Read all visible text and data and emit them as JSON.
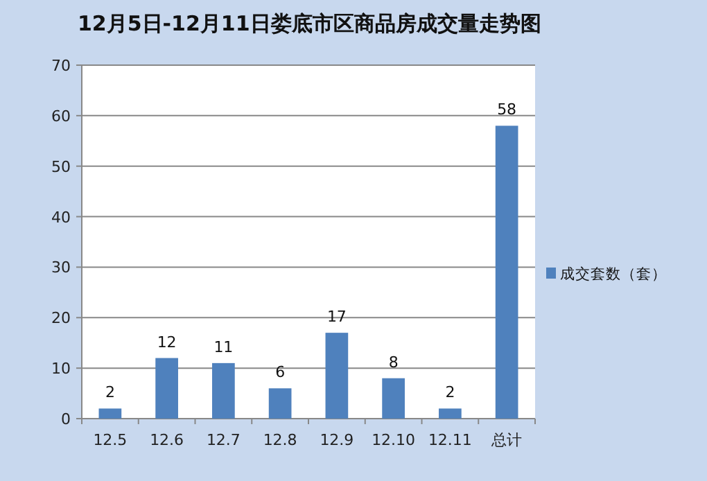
{
  "chart_data": {
    "type": "bar",
    "title": "12月5日-12月11日娄底市区商品房成交量走势图",
    "categories": [
      "12.5",
      "12.6",
      "12.7",
      "12.8",
      "12.9",
      "12.10",
      "12.11",
      "总计"
    ],
    "series": [
      {
        "name": "成交套数（套）",
        "color": "#4f81bd",
        "values": [
          2,
          12,
          11,
          6,
          17,
          8,
          2,
          58
        ]
      }
    ],
    "ylim": [
      0,
      70
    ],
    "yticks": [
      0,
      10,
      20,
      30,
      40,
      50,
      60,
      70
    ],
    "grid": "y",
    "legend": "right",
    "data_labels": true
  }
}
